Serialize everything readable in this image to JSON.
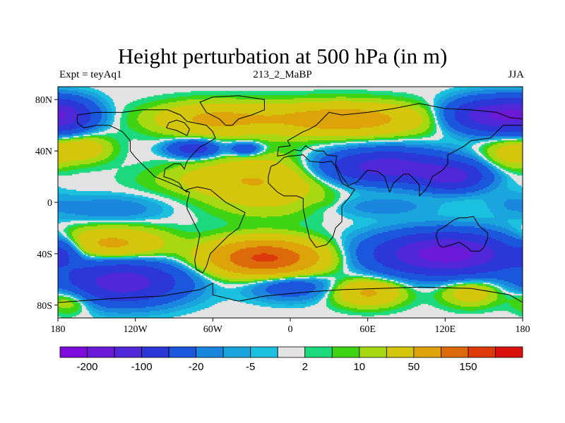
{
  "title": "Height perturbation at 500 hPa (in m)",
  "left_subtitle": "Expt = teyAq1",
  "center_subtitle": "213_2_MaBP",
  "right_subtitle": "JJA",
  "chart_data": {
    "type": "heatmap",
    "title": "Height perturbation at 500 hPa (in m)",
    "x_range": [
      -180,
      180
    ],
    "y_range": [
      -90,
      90
    ],
    "x_ticks": [
      -180,
      -120,
      -60,
      0,
      60,
      120,
      180
    ],
    "x_tick_labels": [
      "180",
      "120W",
      "60W",
      "0",
      "60E",
      "120E",
      "180"
    ],
    "y_ticks": [
      80,
      40,
      0,
      -40,
      -80
    ],
    "y_tick_labels": [
      "80N",
      "40N",
      "0",
      "40S",
      "80S"
    ],
    "contour_levels": [
      -200,
      -150,
      -100,
      -50,
      -20,
      -10,
      -5,
      -2,
      2,
      5,
      10,
      20,
      50,
      100,
      150,
      200
    ],
    "colorbar_labels": [
      {
        "after_box": 1,
        "text": "-200"
      },
      {
        "after_box": 3,
        "text": "-100"
      },
      {
        "after_box": 5,
        "text": "-20"
      },
      {
        "after_box": 7,
        "text": "-5"
      },
      {
        "after_box": 9,
        "text": "2"
      },
      {
        "after_box": 11,
        "text": "10"
      },
      {
        "after_box": 13,
        "text": "50"
      },
      {
        "after_box": 15,
        "text": "150"
      }
    ],
    "colors": [
      "#7c0bdc",
      "#6a19d7",
      "#4f27d6",
      "#2b37d6",
      "#1b57dc",
      "#1b86de",
      "#1aa6dd",
      "#1ac0dd",
      "#e3e3e3",
      "#1bd97c",
      "#3fd413",
      "#a8d812",
      "#d3c60d",
      "#dca409",
      "#dc6a0a",
      "#dc3a0a",
      "#d9100e"
    ],
    "field_anomalies": [
      {
        "lon": -60,
        "lat": 65,
        "value": 55,
        "rx": 45,
        "ry": 12
      },
      {
        "lon": 40,
        "lat": 65,
        "value": 75,
        "rx": 60,
        "ry": 12
      },
      {
        "lon": 155,
        "lat": 68,
        "value": -140,
        "rx": 30,
        "ry": 12
      },
      {
        "lon": -175,
        "lat": 68,
        "value": -100,
        "rx": 22,
        "ry": 12
      },
      {
        "lon": -75,
        "lat": 42,
        "value": -80,
        "rx": 18,
        "ry": 6
      },
      {
        "lon": -35,
        "lat": 42,
        "value": -50,
        "rx": 12,
        "ry": 5
      },
      {
        "lon": 75,
        "lat": 28,
        "value": -130,
        "rx": 45,
        "ry": 12
      },
      {
        "lon": 125,
        "lat": 20,
        "value": -110,
        "rx": 25,
        "ry": 10
      },
      {
        "lon": 170,
        "lat": 38,
        "value": 30,
        "rx": 20,
        "ry": 12
      },
      {
        "lon": -160,
        "lat": 42,
        "value": 35,
        "rx": 20,
        "ry": 10
      },
      {
        "lon": -60,
        "lat": 18,
        "value": 20,
        "rx": 50,
        "ry": 12
      },
      {
        "lon": -20,
        "lat": 15,
        "value": 40,
        "rx": 45,
        "ry": 22
      },
      {
        "lon": -140,
        "lat": -5,
        "value": -18,
        "rx": 40,
        "ry": 10
      },
      {
        "lon": 70,
        "lat": -3,
        "value": -15,
        "rx": 40,
        "ry": 8
      },
      {
        "lon": 170,
        "lat": 0,
        "value": -8,
        "rx": 20,
        "ry": 10
      },
      {
        "lon": 30,
        "lat": 0,
        "value": 4,
        "rx": 10,
        "ry": 5
      },
      {
        "lon": -140,
        "lat": -32,
        "value": 60,
        "rx": 40,
        "ry": 12
      },
      {
        "lon": -20,
        "lat": -43,
        "value": 160,
        "rx": 40,
        "ry": 13
      },
      {
        "lon": 120,
        "lat": -40,
        "value": -180,
        "rx": 50,
        "ry": 15
      },
      {
        "lon": -175,
        "lat": -38,
        "value": -40,
        "rx": 12,
        "ry": 10
      },
      {
        "lon": -130,
        "lat": -62,
        "value": -130,
        "rx": 42,
        "ry": 15
      },
      {
        "lon": 60,
        "lat": -70,
        "value": 55,
        "rx": 25,
        "ry": 10
      },
      {
        "lon": 140,
        "lat": -70,
        "value": 35,
        "rx": 22,
        "ry": 10
      },
      {
        "lon": -170,
        "lat": -75,
        "value": 30,
        "rx": 18,
        "ry": 10
      },
      {
        "lon": 0,
        "lat": -65,
        "value": -40,
        "rx": 30,
        "ry": 10
      }
    ],
    "coastlines": [
      [
        [
          -165,
          68
        ],
        [
          -150,
          70
        ],
        [
          -130,
          70
        ],
        [
          -115,
          72
        ],
        [
          -95,
          72
        ],
        [
          -85,
          68
        ],
        [
          -80,
          63
        ],
        [
          -75,
          62
        ],
        [
          -65,
          60
        ],
        [
          -60,
          55
        ],
        [
          -58,
          50
        ],
        [
          -66,
          45
        ],
        [
          -70,
          43
        ],
        [
          -75,
          38
        ],
        [
          -80,
          32
        ],
        [
          -82,
          26
        ],
        [
          -85,
          30
        ],
        [
          -90,
          30
        ],
        [
          -97,
          26
        ],
        [
          -98,
          20
        ],
        [
          -92,
          18
        ],
        [
          -86,
          15
        ],
        [
          -83,
          10
        ],
        [
          -78,
          8
        ],
        [
          -80,
          0
        ],
        [
          -80,
          -5
        ],
        [
          -75,
          -15
        ],
        [
          -70,
          -25
        ],
        [
          -72,
          -35
        ],
        [
          -74,
          -45
        ],
        [
          -73,
          -52
        ],
        [
          -68,
          -55
        ],
        [
          -65,
          -50
        ],
        [
          -62,
          -40
        ],
        [
          -57,
          -35
        ],
        [
          -48,
          -26
        ],
        [
          -40,
          -20
        ],
        [
          -35,
          -8
        ],
        [
          -50,
          0
        ],
        [
          -62,
          10
        ],
        [
          -72,
          12
        ],
        [
          -80,
          10
        ],
        [
          -80,
          8
        ],
        [
          -86,
          12
        ],
        [
          -95,
          16
        ],
        [
          -105,
          20
        ],
        [
          -110,
          25
        ],
        [
          -115,
          30
        ],
        [
          -120,
          35
        ],
        [
          -124,
          40
        ],
        [
          -124,
          48
        ],
        [
          -130,
          55
        ],
        [
          -140,
          60
        ],
        [
          -150,
          60
        ],
        [
          -160,
          58
        ],
        [
          -165,
          62
        ],
        [
          -165,
          68
        ]
      ],
      [
        [
          -15,
          28
        ],
        [
          -17,
          20
        ],
        [
          -17,
          15
        ],
        [
          -10,
          8
        ],
        [
          -5,
          5
        ],
        [
          5,
          5
        ],
        [
          10,
          3
        ],
        [
          10,
          -5
        ],
        [
          12,
          -15
        ],
        [
          15,
          -28
        ],
        [
          20,
          -35
        ],
        [
          28,
          -33
        ],
        [
          33,
          -27
        ],
        [
          35,
          -20
        ],
        [
          40,
          -15
        ],
        [
          40,
          -10
        ],
        [
          40,
          -3
        ],
        [
          45,
          3
        ],
        [
          50,
          10
        ],
        [
          45,
          12
        ],
        [
          40,
          15
        ],
        [
          38,
          20
        ],
        [
          35,
          28
        ],
        [
          32,
          32
        ],
        [
          25,
          31
        ],
        [
          15,
          32
        ],
        [
          10,
          37
        ],
        [
          0,
          36
        ],
        [
          -5,
          35
        ],
        [
          -10,
          30
        ],
        [
          -15,
          28
        ]
      ],
      [
        [
          -10,
          36
        ],
        [
          -9,
          43
        ],
        [
          0,
          44
        ],
        [
          -2,
          48
        ],
        [
          5,
          52
        ],
        [
          10,
          55
        ],
        [
          15,
          57
        ],
        [
          20,
          60
        ],
        [
          25,
          65
        ],
        [
          30,
          70
        ],
        [
          40,
          68
        ],
        [
          60,
          70
        ],
        [
          80,
          73
        ],
        [
          100,
          77
        ],
        [
          120,
          73
        ],
        [
          140,
          72
        ],
        [
          160,
          70
        ],
        [
          170,
          66
        ],
        [
          180,
          65
        ],
        [
          180,
          60
        ],
        [
          165,
          60
        ],
        [
          160,
          55
        ],
        [
          155,
          50
        ],
        [
          140,
          48
        ],
        [
          135,
          44
        ],
        [
          128,
          40
        ],
        [
          122,
          37
        ],
        [
          122,
          30
        ],
        [
          118,
          25
        ],
        [
          110,
          20
        ],
        [
          108,
          15
        ],
        [
          105,
          10
        ],
        [
          100,
          5
        ],
        [
          100,
          13
        ],
        [
          98,
          16
        ],
        [
          92,
          22
        ],
        [
          88,
          22
        ],
        [
          80,
          15
        ],
        [
          77,
          8
        ],
        [
          73,
          20
        ],
        [
          68,
          24
        ],
        [
          60,
          25
        ],
        [
          57,
          22
        ],
        [
          52,
          16
        ],
        [
          45,
          13
        ],
        [
          40,
          20
        ],
        [
          35,
          30
        ],
        [
          36,
          36
        ],
        [
          28,
          37
        ],
        [
          26,
          40
        ],
        [
          20,
          40
        ],
        [
          15,
          42
        ],
        [
          12,
          44
        ],
        [
          8,
          40
        ],
        [
          3,
          41
        ],
        [
          -4,
          37
        ],
        [
          -10,
          36
        ]
      ],
      [
        [
          114,
          -22
        ],
        [
          113,
          -26
        ],
        [
          115,
          -33
        ],
        [
          118,
          -35
        ],
        [
          125,
          -33
        ],
        [
          131,
          -31
        ],
        [
          137,
          -35
        ],
        [
          140,
          -38
        ],
        [
          147,
          -38
        ],
        [
          150,
          -35
        ],
        [
          153,
          -28
        ],
        [
          153,
          -24
        ],
        [
          146,
          -18
        ],
        [
          142,
          -11
        ],
        [
          136,
          -12
        ],
        [
          131,
          -12
        ],
        [
          126,
          -14
        ],
        [
          121,
          -18
        ],
        [
          114,
          -22
        ]
      ],
      [
        [
          -180,
          -78
        ],
        [
          -140,
          -75
        ],
        [
          -100,
          -73
        ],
        [
          -70,
          -68
        ],
        [
          -60,
          -63
        ],
        [
          -60,
          -72
        ],
        [
          -40,
          -77
        ],
        [
          -20,
          -73
        ],
        [
          10,
          -70
        ],
        [
          40,
          -68
        ],
        [
          70,
          -67
        ],
        [
          100,
          -66
        ],
        [
          140,
          -67
        ],
        [
          170,
          -72
        ],
        [
          180,
          -78
        ]
      ],
      [
        [
          -50,
          60
        ],
        [
          -45,
          60
        ],
        [
          -40,
          65
        ],
        [
          -30,
          68
        ],
        [
          -20,
          72
        ],
        [
          -20,
          80
        ],
        [
          -40,
          83
        ],
        [
          -60,
          82
        ],
        [
          -70,
          78
        ],
        [
          -65,
          70
        ],
        [
          -55,
          65
        ],
        [
          -50,
          60
        ]
      ],
      [
        [
          -96,
          58
        ],
        [
          -94,
          62
        ],
        [
          -88,
          64
        ],
        [
          -82,
          62
        ],
        [
          -78,
          57
        ],
        [
          -80,
          52
        ],
        [
          -88,
          56
        ],
        [
          -96,
          58
        ]
      ]
    ]
  }
}
